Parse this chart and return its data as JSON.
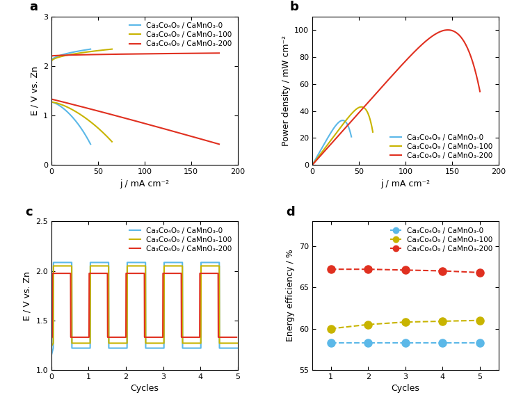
{
  "colors": {
    "blue": "#5BB8E8",
    "yellow": "#C8B400",
    "red": "#E03020"
  },
  "panel_a": {
    "title": "a",
    "xlabel": "j / mA cm⁻²",
    "ylabel": "E / V vs. Zn",
    "xlim": [
      0,
      200
    ],
    "ylim": [
      0,
      3
    ],
    "yticks": [
      0,
      1,
      2,
      3
    ],
    "xticks": [
      0,
      50,
      100,
      150,
      200
    ],
    "legend": [
      "Ca₃Co₄O₉ / CaMnO₃-0",
      "Ca₃Co₄O₉ / CaMnO₃-100",
      "Ca₃Co₄O₉ / CaMnO₃-200"
    ]
  },
  "panel_b": {
    "title": "b",
    "xlabel": "j / mA cm⁻²",
    "ylabel": "Power density / mW cm⁻²",
    "xlim": [
      0,
      200
    ],
    "ylim": [
      0,
      110
    ],
    "yticks": [
      0,
      20,
      40,
      60,
      80,
      100
    ],
    "xticks": [
      0,
      50,
      100,
      150,
      200
    ],
    "legend": [
      "Ca₃Co₄O₉ / CaMnO₃-0",
      "Ca₃Co₄O₉ / CaMnO₃-100",
      "Ca₃Co₄O₉ / CaMnO₃-200"
    ]
  },
  "panel_c": {
    "title": "c",
    "xlabel": "Cycles",
    "ylabel": "E / V vs. Zn",
    "xlim": [
      0,
      5
    ],
    "ylim": [
      1.0,
      2.5
    ],
    "yticks": [
      1.0,
      1.5,
      2.0,
      2.5
    ],
    "xticks": [
      0,
      1,
      2,
      3,
      4,
      5
    ],
    "legend": [
      "Ca₃Co₄O₉ / CaMnO₃-0",
      "Ca₃Co₄O₉ / CaMnO₃-100",
      "Ca₃Co₄O₉ / CaMnO₃-200"
    ]
  },
  "panel_d": {
    "title": "d",
    "xlabel": "Cycles",
    "ylabel": "Energy efficiency / %",
    "xlim": [
      0.5,
      5.5
    ],
    "ylim": [
      55,
      73
    ],
    "yticks": [
      55,
      60,
      65,
      70
    ],
    "xticks": [
      1,
      2,
      3,
      4,
      5
    ],
    "legend": [
      "Ca₃Co₄O₉ / CaMnO₃-0",
      "Ca₃Co₄O₉ / CaMnO₃-100",
      "Ca₃Co₄O₉ / CaMnO₃-200"
    ],
    "blue_vals": [
      58.3,
      58.3,
      58.3,
      58.3,
      58.3
    ],
    "yellow_vals": [
      60.0,
      60.5,
      60.8,
      60.9,
      61.0
    ],
    "red_vals": [
      67.2,
      67.2,
      67.1,
      67.0,
      66.8
    ]
  }
}
